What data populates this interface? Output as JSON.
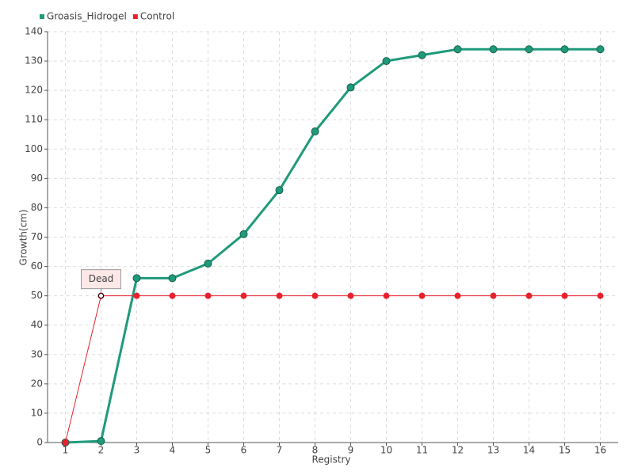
{
  "chart_data": {
    "type": "line",
    "categories": [
      "1",
      "2",
      "3",
      "4",
      "5",
      "6",
      "7",
      "8",
      "9",
      "10",
      "11",
      "12",
      "13",
      "14",
      "15",
      "16"
    ],
    "series": [
      {
        "name": "Groasis_Hidrogel",
        "color": "#1f9a7a",
        "values": [
          0,
          0.5,
          56,
          56,
          61,
          71,
          86,
          106,
          121,
          130,
          132,
          134,
          134,
          134,
          134,
          134
        ]
      },
      {
        "name": "Control",
        "color": "#e8212d",
        "values": [
          0,
          50,
          50,
          50,
          50,
          50,
          50,
          50,
          50,
          50,
          50,
          50,
          50,
          50,
          50,
          50
        ]
      }
    ],
    "annotations": [
      {
        "text": "Dead"
      }
    ],
    "x_label": "Registry",
    "y_label": "Growth(cm)",
    "ylim": [
      0,
      140
    ],
    "yticks": [
      0,
      10,
      20,
      30,
      40,
      50,
      60,
      70,
      80,
      90,
      100,
      110,
      120,
      130,
      140
    ],
    "grid": true
  }
}
